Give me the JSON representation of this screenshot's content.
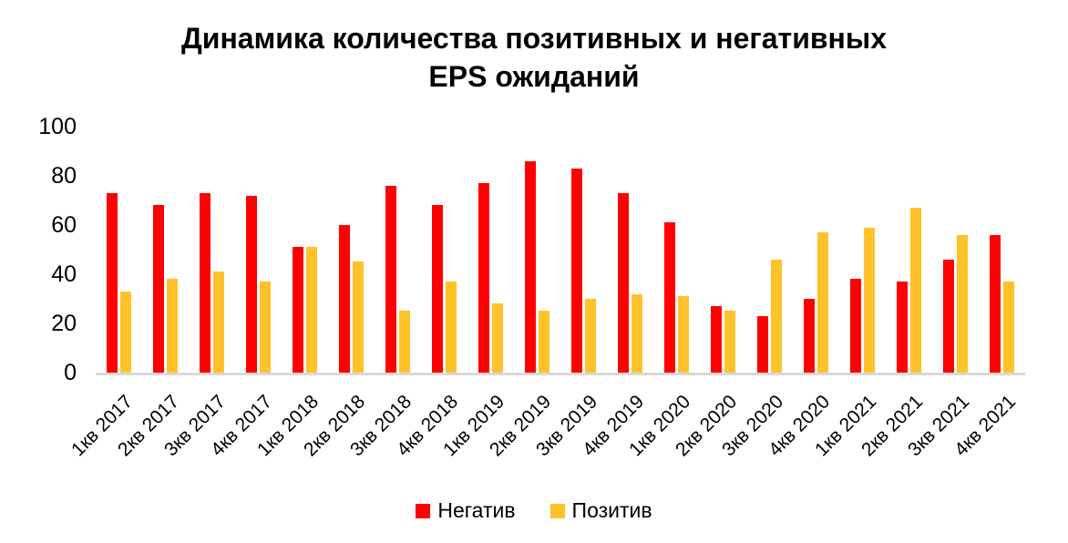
{
  "title": {
    "line1": "Динамика количества позитивных и негативных",
    "line2": "EPS ожиданий"
  },
  "chart_data": {
    "type": "bar",
    "title": "Динамика количества позитивных и негативных EPS ожиданий",
    "categories": [
      "1кв 2017",
      "2кв 2017",
      "3кв 2017",
      "4кв 2017",
      "1кв 2018",
      "2кв 2018",
      "3кв 2018",
      "4кв 2018",
      "1кв 2019",
      "2кв 2019",
      "3кв 2019",
      "4кв 2019",
      "1кв 2020",
      "2кв 2020",
      "3кв 2020",
      "4кв 2020",
      "1кв 2021",
      "2кв 2021",
      "3кв 2021",
      "4кв 2021"
    ],
    "series": [
      {
        "name": "Негатив",
        "color": "#FF0000",
        "values": [
          73,
          68,
          73,
          72,
          51,
          60,
          76,
          68,
          77,
          86,
          83,
          73,
          61,
          27,
          23,
          30,
          38,
          37,
          46,
          56
        ]
      },
      {
        "name": "Позитив",
        "color": "#FFC22B",
        "values": [
          33,
          38,
          41,
          37,
          51,
          45,
          25,
          37,
          28,
          25,
          30,
          32,
          31,
          25,
          46,
          57,
          59,
          67,
          56,
          37
        ]
      }
    ],
    "xlabel": "",
    "ylabel": "",
    "ylim": [
      0,
      100
    ],
    "yticks": [
      0,
      20,
      40,
      60,
      80,
      100
    ],
    "grid": false,
    "legend_position": "bottom",
    "axis_line_color": "#D9D9D9",
    "x_label_rotation_deg": 45
  }
}
